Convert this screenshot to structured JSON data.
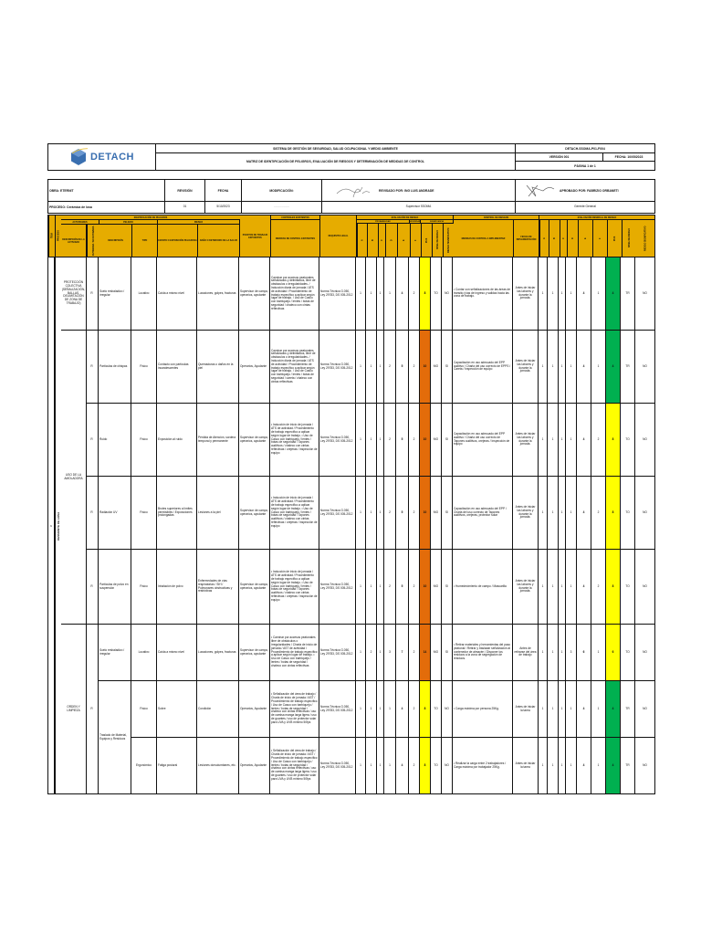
{
  "header": {
    "logo_text": "DETACH",
    "system_title": "SISTEMA DE GESTIÓN DE SEGURIDAD, SALUD OCUPACIONAL Y MEDIO AMBIENTE",
    "doc_title": "MATRIZ DE IDENTIFICACIÓN DE PELIGROS, EVALUACIÓN DE RIESGOS Y DETERMINACIÓN DE MEDIDAS DE CONTROL",
    "doc_code": "DETACH-SSOMA-P01-F004",
    "version": "VERSIÓN 001",
    "fecha": "FECHA: 10/05/2023",
    "pagina": "PÁGINA 1 de 1"
  },
  "info": {
    "obra": "OBRA: ETERNIT",
    "proceso": "PROCESO: Cerámica de losa",
    "revision_label": "REVISIÓN",
    "revision_value": "01",
    "fecha_label": "FECHA",
    "fecha_value": "5/10/2023",
    "modificacion_label": "MODIFICACIÓN:",
    "modificacion_value": "----------------",
    "revisado_por": "REVISADO POR: ING LUIS ANDRADE",
    "revisado_cargo": "Supervisor SSOMA",
    "aprobado_por": "APROBADO POR: FABRIZIO ORBANETI",
    "aprobado_cargo": "Gerente General"
  },
  "table_header": {
    "group_identificacion": "IDENTIFICACIÓN DE PELIGROS",
    "group_actividad": "ACTIVIDADES",
    "group_peligro": "PELIGRO",
    "group_riesgo": "RIESGO",
    "group_controles": "CONTROLES EXISTENTES",
    "group_evaluacion": "EVALUACIÓN DE RIESGO",
    "group_probabilidad": "PROBABILIDAD",
    "group_severidad": "SEVERIDAD",
    "group_significancia": "SIGNIFICANCIA",
    "group_control_riesgos": "CONTROL DE RIESGOS",
    "group_evaluacion_residual": "EVALUACIÓN RESIDUAL DE RIESGO",
    "col_item": "ÍTEM",
    "col_proceso": "PROCESO",
    "col_actividad": "DESCRIPCIÓN DE LA ACTIVIDAD",
    "col_rutinaria": "RUTINARIA / NO RUTINARIA",
    "col_descripcion": "DESCRIPCIÓN",
    "col_tipo": "TIPO",
    "col_evento": "EVENTO O EXPOSICIÓN PELIGROSA",
    "col_dano": "DAÑO O DETERIORO DE LA SALUD",
    "col_puestos": "PUESTOS DE TRABAJO EXPUESTOS",
    "col_medidas_existentes": "MEDIDAS DE CONTROL EXISTENTES",
    "col_requisito": "REQUISITO LEGAL",
    "col_a": "A",
    "col_b": "B",
    "col_c": "C",
    "col_d": "D",
    "col_e": "E",
    "col_f": "F",
    "col_ipxs": "IPxS",
    "col_nivel": "NIVEL DE RIESGO",
    "col_riesgo_sig": "RIESGO SIGNIFICATIVO",
    "col_medidas_control": "MEDIDAS DE CONTROL A IMPLEMENTAR",
    "col_fecha_impl": "FECHA DE IMPLEMENTACIÓN"
  },
  "proceso_label": "DESMONTE DE LOSA",
  "item_number": "1",
  "rows": [
    {
      "actividad": "PROTECCIÓN COLECTIVA (SEÑALIZACIÓN, BALLAS, DELIMITACIÓN DE ZONA DE TRABAJO)",
      "rutinaria": "R",
      "peligro": "Suelo resbaladizo / irregular",
      "tipo": "Locativo",
      "evento": "Caída a mismo nivel",
      "dano": "Luxaciones, golpes, fracturas",
      "puestos": "Supervisor de campo, operarios, ayudante",
      "medidas": "Caminar por accesos peatonales señalizados y delimitados, libre de obstáculos o irregularidades. / Inducción diaria de jornada / ATS de actividad / Procedimiento de trabajo específico a aplicar según lugar de trabajo. / Uso de Casco con barbiquejo / lentes / botas de seguridad / chaleco con cintas reflectivas",
      "requisito": "Norma Técnica G.050, Ley 29783, DS 005-2012",
      "a": "1",
      "b": "1",
      "c": "1",
      "d": "1",
      "ip": "4",
      "s": "2",
      "ipxs": "8",
      "nivel": "TO",
      "sig": "NO",
      "nivel_color": "yellow",
      "control": "• Contar con señalizaciones de las áreas de tránsito (vías de ingreso y salidas hacia las zona de trabajo.",
      "fecha_impl": "Antes de iniciar las labores y durante la jornada.",
      "ra": "1",
      "rb": "1",
      "rc": "1",
      "rd": "1",
      "rip": "4",
      "rs": "1",
      "ripxs": "4",
      "rnivel": "TR",
      "rsig": "NO",
      "rnivel_color": "green"
    },
    {
      "actividad": "USO DE LA AMOLADORA",
      "rutinaria": "R",
      "peligro": "Partículas de chispas",
      "tipo": "Físico",
      "evento": "Contacto con partículas incandescentes",
      "dano": "Quemaduras o daños en la piel",
      "puestos": "Operarios, Ayudante",
      "medidas": "Caminar por accesos peatonales señalizados y delimitados, libre de obstáculos o irregularidades. / Inducción diaria de jornada / ATS de actividad / Procedimiento de trabajo específico a aplicar según lugar de trabajo. / Uso de Casco con barbiquejo / lentes / botas de seguridad / careta / chaleco con cintas reflectivas",
      "requisito": "Norma Técnica G.050, Ley 29783, DS 005-2012",
      "a": "1",
      "b": "1",
      "c": "1",
      "d": "2",
      "ip": "5",
      "s": "2",
      "ipxs": "10",
      "nivel": "MO",
      "sig": "SI",
      "nivel_color": "orange",
      "control": "Capacitación en uso adecuado del EPP auditivo / Charla del uso correcto de EPPS / Careta / Inspección de equipo",
      "fecha_impl": "Antes de iniciar las labores y durante la jornada.",
      "ra": "1",
      "rb": "1",
      "rc": "1",
      "rd": "1",
      "rip": "4",
      "rs": "1",
      "ripxs": "4",
      "rnivel": "TR",
      "rsig": "NO",
      "rnivel_color": "green"
    },
    {
      "actividad": "",
      "rutinaria": "R",
      "peligro": "Ruido",
      "tipo": "Físico",
      "evento": "Exposición al ruido",
      "dano": "Pérdida de Atención, sordera temporal y permanente",
      "puestos": "Supervisor de campo, operarios, ayudante",
      "medidas": "• Inducción de inicio de jornada / ATS de actividad / Procedimiento de trabajo específico a aplicar según lugar de trabajo. • Uso de Casco con barbiquejo / lentes / botas de seguridad / Tapones auditivos / chaleco con cintas reflectivas / orejeras / inspección de equipo",
      "requisito": "Norma Técnica G.050, Ley 29783, DS 005-2012",
      "a": "1",
      "b": "1",
      "c": "1",
      "d": "2",
      "ip": "5",
      "s": "2",
      "ipxs": "10",
      "nivel": "MO",
      "sig": "SI",
      "nivel_color": "orange",
      "control": "Capacitación en uso adecuado del EPP auditivo / Charla del uso correcto de Tapones auditivos, orejeras / Inspección de equipo",
      "fecha_impl": "Antes de iniciar las labores y durante la jornada.",
      "ra": "1",
      "rb": "1",
      "rc": "1",
      "rd": "1",
      "rip": "4",
      "rs": "2",
      "ripxs": "8",
      "rnivel": "TO",
      "rsig": "NO",
      "rnivel_color": "yellow"
    },
    {
      "actividad": "",
      "rutinaria": "R",
      "peligro": "Radiación UV",
      "tipo": "Físico",
      "evento": "Brotes superiores a límites permisibles / Exposiciones prolongadas",
      "dano": "Lesiones a la piel",
      "puestos": "Supervisor de campo, operarios, ayudante",
      "medidas": "• Inducción de inicio de jornada / ATS de actividad / Procedimiento de trabajo específico a aplicar según lugar de trabajo. • Uso de Casco con barbiquejo / lentes / botas de seguridad / Tapones auditivos / chaleco con cintas reflectivas / orejeras / inspección de equipo",
      "requisito": "Norma Técnica G.050, Ley 29783, DS 005-2012",
      "a": "1",
      "b": "1",
      "c": "1",
      "d": "2",
      "ip": "5",
      "s": "2",
      "ipxs": "10",
      "nivel": "MO",
      "sig": "SI",
      "nivel_color": "orange",
      "control": "Capacitación en uso adecuado del EPP / Charla del uso correcto de Tapones auditivos, orejeras, protector solar",
      "fecha_impl": "Antes de iniciar las labores y durante la jornada.",
      "ra": "1",
      "rb": "1",
      "rc": "1",
      "rd": "1",
      "rip": "4",
      "rs": "2",
      "ripxs": "8",
      "rnivel": "TO",
      "rsig": "NO",
      "rnivel_color": "yellow"
    },
    {
      "actividad": "",
      "rutinaria": "R",
      "peligro": "Partículas de polvo en suspensión",
      "tipo": "Físico",
      "evento": "Inhalación de polvo",
      "dano": "Enfermedades de vías respiratorias / SIH / Pulmonares obstructivas y restrictivas",
      "puestos": "Supervisor de campo, operarios, ayudante",
      "medidas": "• Inducción de inicio de jornada / ATS de actividad / Procedimiento de trabajo específico a aplicar según lugar de trabajo. • Uso de Casco con barbiquejo / lentes / botas de seguridad / Tapones auditivos / chaleco con cintas reflectivas / orejeras / inspección de equipo",
      "requisito": "Norma Técnica G.050, Ley 29783, DS 005-2012",
      "a": "1",
      "b": "1",
      "c": "1",
      "d": "2",
      "ip": "5",
      "s": "2",
      "ipxs": "10",
      "nivel": "MO",
      "sig": "SI",
      "nivel_color": "orange",
      "control": "• Humedecimiento de campo / Mascarilla",
      "fecha_impl": "Antes de iniciar las labores y durante la jornada.",
      "ra": "1",
      "rb": "1",
      "rc": "1",
      "rd": "1",
      "rip": "4",
      "rs": "2",
      "ripxs": "8",
      "rnivel": "TO",
      "rsig": "NO",
      "rnivel_color": "yellow"
    },
    {
      "actividad": "ORDEN Y LIMPIEZA",
      "rutinaria": "R",
      "peligro": "Suelo resbaladizo / irregular",
      "tipo": "Locativo",
      "evento": "Caída a mismo nivel",
      "dano": "Luxaciones, golpes, fracturas",
      "puestos": "Supervisor de campo, operarios, ayudante",
      "medidas": "• Caminar por accesos peatonales libre de obstáculos o irregularidades / Charla de inicio de jornada / AST de actividad / Procedimiento de trabajo específico a aplicar según lugar de trabajo. • Uso de Casco con barbiquejo / lentes / botas de seguridad / chaleco con cintas reflectivas",
      "requisito": "Norma Técnica G.050, Ley 29783, DS 005-2012",
      "a": "1",
      "b": "2",
      "c": "1",
      "d": "3",
      "ip": "7",
      "s": "2",
      "ipxs": "14",
      "nivel": "MO",
      "sig": "SI",
      "nivel_color": "orange",
      "control": "• Retirar materiales y herramientas del paso peatonal / Retirar y trasladar señalización al contenedor de almacén / Disponer los residuos a la zona de segregación de residuos.",
      "fecha_impl": "Antes de retirarse del área de trabajo",
      "ra": "1",
      "rb": "1",
      "rc": "1",
      "rd": "3",
      "rip": "6",
      "rs": "1",
      "ripxs": "6",
      "rnivel": "TO",
      "rsig": "NO",
      "rnivel_color": "yellow"
    },
    {
      "actividad": "",
      "rutinaria": "",
      "peligro": "Traslado de Material, Equipos y Residuos",
      "tipo": "Físico",
      "evento": "Sobre",
      "dano": "Condición",
      "puestos": "Operarios, Ayudante",
      "medidas": "• Señalización del área de trabajo / Charla de inicio de jornada / AST / Procedimiento de trabajo específico / Uso de Casco con barbiquejo / lentes / botas de seguridad / chaleco con cintas reflectivas / uso de camisa manga larga ligera / uso de guantes / uso de protector solar para UVA y UVB mínimo 50fps",
      "requisito": "Norma Técnica G.050, Ley 29783, DS 005-2012",
      "a": "1",
      "b": "1",
      "c": "1",
      "d": "1",
      "ip": "4",
      "s": "2",
      "ipxs": "8",
      "nivel": "TO",
      "sig": "NO",
      "nivel_color": "yellow",
      "control": "• Carga máxima por persona 25Kg.",
      "fecha_impl": "Antes de iniciar la tarea",
      "ra": "1",
      "rb": "1",
      "rc": "1",
      "rd": "1",
      "rip": "4",
      "rs": "1",
      "ripxs": "4",
      "rnivel": "TR",
      "rsig": "NO",
      "rnivel_color": "green"
    },
    {
      "actividad": "",
      "rutinaria": "",
      "peligro": "",
      "tipo": "Ergonómico",
      "evento": "Fatiga postural",
      "dano": "Lesiones dorsolumbares, etc.",
      "puestos": "Operarios, Ayudante",
      "medidas": "• Señalización del área de trabajo / Charla de inicio de jornada / AST / Procedimiento de trabajo específico / Uso de Casco con barbiquejo / lentes / botas de seguridad / chaleco con cintas reflectivas / uso de camisa manga larga ligera / uso de guantes / uso de protector solar para UVA y UVB mínimo 50fps",
      "requisito": "Norma Técnica G.050, Ley 29783, DS 005-2012",
      "a": "1",
      "b": "1",
      "c": "1",
      "d": "1",
      "ip": "4",
      "s": "2",
      "ipxs": "8",
      "nivel": "TO",
      "sig": "NO",
      "nivel_color": "yellow",
      "control": "• Realizar la carga entre 2 trabajadores / Carga máxima por trabajador 25Kg.",
      "fecha_impl": "Antes de iniciar la tarea",
      "ra": "1",
      "rb": "1",
      "rc": "1",
      "rd": "1",
      "rip": "4",
      "rs": "1",
      "ripxs": "4",
      "rnivel": "TR",
      "rsig": "NO",
      "rnivel_color": "green"
    }
  ],
  "colors": {
    "header_fill": "#e6ac00",
    "yellow": "#ffff00",
    "orange": "#e36c0a",
    "green": "#00b050",
    "logo_blue": "#3a6fb0"
  }
}
